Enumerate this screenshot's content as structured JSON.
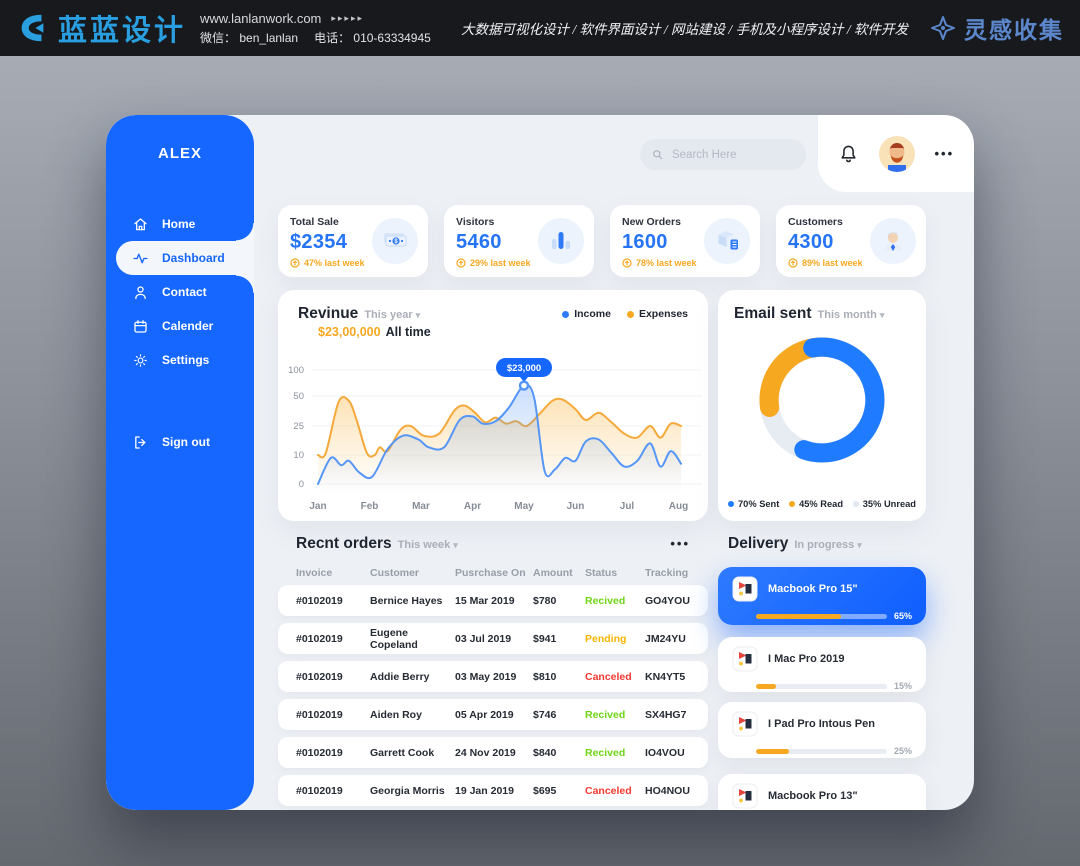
{
  "banner": {
    "logo_text": "蓝蓝设计",
    "website": "www.lanlanwork.com",
    "arrows": "▸▸▸▸▸",
    "wechat": "微信： ben_lanlan",
    "phone": "电话： 010-63334945",
    "services": "大数据可视化设计 / 软件界面设计 / 网站建设 / 手机及小程序设计 / 软件开发",
    "collect_text": "灵感收集"
  },
  "sidebar": {
    "brand": "ALEX",
    "items": [
      {
        "label": "Home"
      },
      {
        "label": "Dashboard"
      },
      {
        "label": "Contact"
      },
      {
        "label": "Calender"
      },
      {
        "label": "Settings"
      },
      {
        "label": "Sign out"
      }
    ]
  },
  "topbar": {
    "search_placeholder": "Search Here",
    "menu_dots": "•••"
  },
  "stats": {
    "cards": [
      {
        "title": "Total Sale",
        "value": "$2354",
        "delta": "47% last week"
      },
      {
        "title": "Visitors",
        "value": "5460",
        "delta": "29% last week"
      },
      {
        "title": "New Orders",
        "value": "1600",
        "delta": "78% last week"
      },
      {
        "title": "Customers",
        "value": "4300",
        "delta": "89% last week"
      }
    ]
  },
  "revenue": {
    "title": "Revinue",
    "period": "This year",
    "amount": "$23,00,000",
    "amount_suffix": "All time",
    "legend": [
      {
        "label": "Income",
        "color": "#2f7bf6"
      },
      {
        "label": "Expenses",
        "color": "#f7a821"
      }
    ]
  },
  "email": {
    "title": "Email sent",
    "period": "This month",
    "legend": [
      {
        "label": "70% Sent",
        "color": "#1f7bff"
      },
      {
        "label": "45% Read",
        "color": "#f7a821"
      },
      {
        "label": "35% Unread",
        "color": "#e2e8f0"
      }
    ]
  },
  "orders": {
    "title": "Recnt orders",
    "period": "This week",
    "menu_dots": "•••",
    "columns": [
      "Invoice",
      "Customer",
      "Pusrchase On",
      "Amount",
      "Status",
      "Tracking"
    ],
    "rows": [
      {
        "invoice": "#0102019",
        "customer": "Bernice Hayes",
        "date": "15 Mar 2019",
        "amount": "$780",
        "status": "Recived",
        "status_color": "#6fd415",
        "tracking": "GO4YOU"
      },
      {
        "invoice": "#0102019",
        "customer": "Eugene Copeland",
        "date": "03 Jul 2019",
        "amount": "$941",
        "status": "Pending",
        "status_color": "#f7b500",
        "tracking": "JM24YU"
      },
      {
        "invoice": "#0102019",
        "customer": "Addie Berry",
        "date": "03 May 2019",
        "amount": "$810",
        "status": "Canceled",
        "status_color": "#f43a32",
        "tracking": "KN4YT5"
      },
      {
        "invoice": "#0102019",
        "customer": "Aiden Roy",
        "date": "05 Apr 2019",
        "amount": "$746",
        "status": "Recived",
        "status_color": "#6fd415",
        "tracking": "SX4HG7"
      },
      {
        "invoice": "#0102019",
        "customer": "Garrett Cook",
        "date": "24 Nov 2019",
        "amount": "$840",
        "status": "Recived",
        "status_color": "#6fd415",
        "tracking": "IO4VOU"
      },
      {
        "invoice": "#0102019",
        "customer": "Georgia Morris",
        "date": "19 Jan 2019",
        "amount": "$695",
        "status": "Canceled",
        "status_color": "#f43a32",
        "tracking": "HO4NOU"
      }
    ]
  },
  "delivery": {
    "title": "Delivery",
    "period": "In progress",
    "items": [
      {
        "name": "Macbook Pro 15\"",
        "progress": 65,
        "progress_label": "65%"
      },
      {
        "name": "I Mac Pro 2019",
        "progress": 15,
        "progress_label": "15%"
      },
      {
        "name": "I Pad Pro Intous Pen",
        "progress": 25,
        "progress_label": "25%"
      },
      {
        "name": "Macbook Pro 13\""
      }
    ]
  },
  "chart_data": [
    {
      "type": "area",
      "title": "Revinue",
      "x_labels": [
        "Jan",
        "Feb",
        "Mar",
        "Apr",
        "May",
        "Jun",
        "Jul",
        "Aug"
      ],
      "y_ticks": [
        0,
        10,
        25,
        50,
        100
      ],
      "grid": true,
      "legend_position": "top-right",
      "annotation": {
        "month": "May",
        "value": 70,
        "label": "$23,000"
      },
      "series": [
        {
          "name": "Expenses",
          "color": "#f5a93b",
          "points": [
            [
              0,
              10
            ],
            [
              0.15,
              11
            ],
            [
              0.4,
              45
            ],
            [
              0.6,
              46
            ],
            [
              0.75,
              30
            ],
            [
              0.95,
              11
            ],
            [
              1.1,
              10
            ],
            [
              1.2,
              14
            ],
            [
              1.35,
              12
            ],
            [
              1.6,
              23
            ],
            [
              1.8,
              25
            ],
            [
              2.05,
              20
            ],
            [
              2.35,
              21
            ],
            [
              2.65,
              38
            ],
            [
              2.85,
              42
            ],
            [
              3.05,
              36
            ],
            [
              3.25,
              28
            ],
            [
              3.45,
              32
            ],
            [
              3.65,
              27
            ],
            [
              3.85,
              29
            ],
            [
              4.05,
              25
            ],
            [
              4.3,
              35
            ],
            [
              4.55,
              46
            ],
            [
              4.75,
              47
            ],
            [
              5.0,
              39
            ],
            [
              5.2,
              30
            ],
            [
              5.45,
              36
            ],
            [
              5.7,
              28
            ],
            [
              5.95,
              21
            ],
            [
              6.2,
              19
            ],
            [
              6.45,
              25
            ],
            [
              6.65,
              19
            ],
            [
              6.85,
              27
            ],
            [
              7.05,
              25
            ]
          ]
        },
        {
          "name": "Income",
          "color": "#5596f7",
          "points": [
            [
              0,
              0
            ],
            [
              0.25,
              9
            ],
            [
              0.45,
              6.5
            ],
            [
              0.6,
              8
            ],
            [
              0.8,
              4
            ],
            [
              1.05,
              2.5
            ],
            [
              1.35,
              13
            ],
            [
              1.65,
              20
            ],
            [
              1.95,
              18
            ],
            [
              2.15,
              14
            ],
            [
              2.45,
              14
            ],
            [
              2.75,
              30
            ],
            [
              3.0,
              33
            ],
            [
              3.2,
              27
            ],
            [
              3.45,
              29
            ],
            [
              3.7,
              40
            ],
            [
              4.0,
              70
            ],
            [
              4.2,
              48
            ],
            [
              4.4,
              4.5
            ],
            [
              4.6,
              5
            ],
            [
              4.8,
              9
            ],
            [
              5.0,
              8
            ],
            [
              5.2,
              17
            ],
            [
              5.45,
              18
            ],
            [
              5.7,
              11
            ],
            [
              5.95,
              6
            ],
            [
              6.2,
              8
            ],
            [
              6.45,
              16
            ],
            [
              6.65,
              6
            ],
            [
              6.85,
              12
            ],
            [
              7.05,
              7
            ]
          ]
        }
      ]
    },
    {
      "type": "pie",
      "title": "Email sent",
      "slices": [
        {
          "label": "Sent",
          "value": 70,
          "color": "#1f7bff"
        },
        {
          "label": "Read",
          "value": 45,
          "color": "#f7a821"
        },
        {
          "label": "Unread",
          "value": 35,
          "color": "#e7ebf2"
        }
      ]
    }
  ]
}
